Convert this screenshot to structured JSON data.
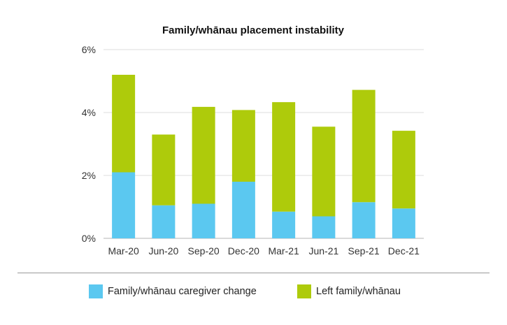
{
  "chart_data": {
    "type": "bar",
    "stacked": true,
    "title": "Family/whānau placement instability",
    "categories": [
      "Mar-20",
      "Jun-20",
      "Sep-20",
      "Dec-20",
      "Mar-21",
      "Jun-21",
      "Sep-21",
      "Dec-21"
    ],
    "series": [
      {
        "name": "Family/whānau caregiver change",
        "color": "#5bc8f0",
        "values": [
          2.1,
          1.05,
          1.1,
          1.8,
          0.85,
          0.7,
          1.15,
          0.95
        ]
      },
      {
        "name": "Left family/whānau",
        "color": "#aecb0b",
        "values": [
          3.1,
          2.25,
          3.08,
          2.28,
          3.48,
          2.85,
          3.57,
          2.47
        ]
      }
    ],
    "y_ticks": [
      "0%",
      "2%",
      "4%",
      "6%"
    ],
    "ylim": [
      0,
      6
    ],
    "ylabel": "",
    "xlabel": "",
    "grid": true,
    "legend_position": "bottom"
  }
}
